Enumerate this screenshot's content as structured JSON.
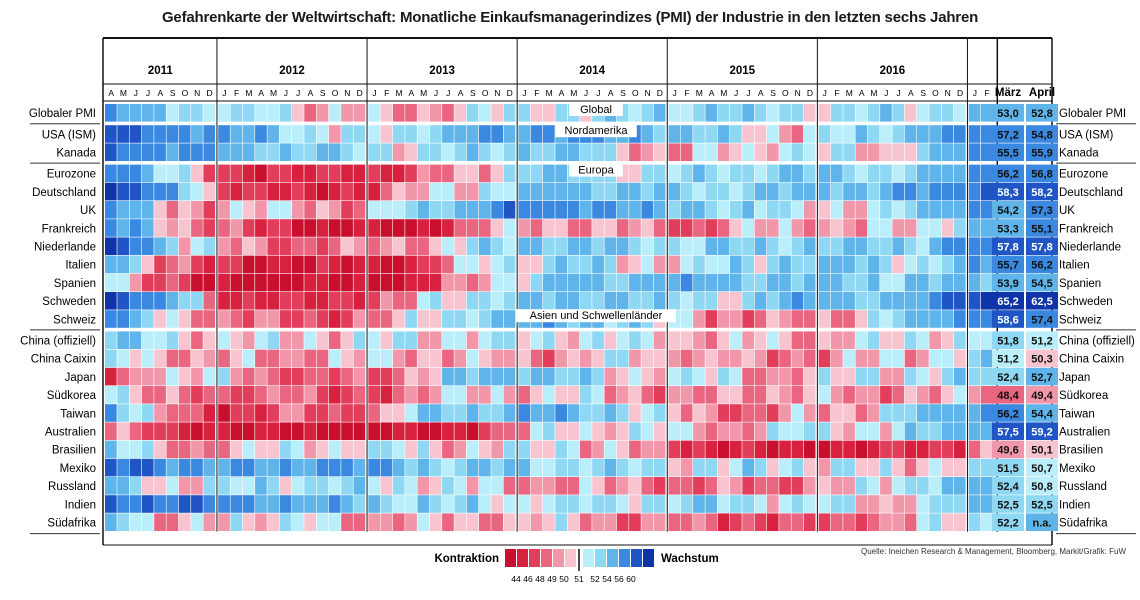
{
  "chart_data": {
    "type": "heatmap",
    "title": "Gefahrenkarte der Weltwirtschaft: Monatliche Einkaufsmanagerindizes (PMI) der Industrie in den letzten sechs Jahren",
    "years": [
      "2011",
      "2012",
      "2013",
      "2014",
      "2015",
      "2016"
    ],
    "month_initials": [
      "J",
      "F",
      "M",
      "A",
      "M",
      "J",
      "J",
      "A",
      "S",
      "O",
      "N",
      "D"
    ],
    "first_month_index": 3,
    "month_count": 71,
    "latest_months": [
      "März",
      "April"
    ],
    "regions": [
      {
        "name": "Global",
        "first_row": 0
      },
      {
        "name": "Nordamerika",
        "first_row": 1
      },
      {
        "name": "Europa",
        "first_row": 3
      },
      {
        "name": "Asien und Schwellenländer",
        "first_row": 11
      }
    ],
    "countries": [
      {
        "name": "Globaler PMI",
        "row": 0,
        "seed": 1,
        "phase": 0.3,
        "anchors": [
          [
            0,
            55
          ],
          [
            6,
            52
          ],
          [
            12,
            51
          ],
          [
            22,
            49
          ],
          [
            34,
            51
          ],
          [
            48,
            52.5
          ],
          [
            58,
            51
          ],
          [
            70,
            52.5
          ]
        ],
        "maerz": "53,0",
        "april": "52,8"
      },
      {
        "name": "USA (ISM)",
        "row": 1,
        "seed": 2,
        "phase": 1.1,
        "anchors": [
          [
            0,
            58
          ],
          [
            12,
            54
          ],
          [
            18,
            50
          ],
          [
            24,
            52
          ],
          [
            34,
            56
          ],
          [
            46,
            53
          ],
          [
            54,
            50
          ],
          [
            62,
            52
          ],
          [
            70,
            57
          ]
        ],
        "maerz": "57,2",
        "april": "54,8"
      },
      {
        "name": "Kanada",
        "row": 2,
        "seed": 3,
        "phase": 2.0,
        "anchors": [
          [
            0,
            58
          ],
          [
            12,
            53
          ],
          [
            24,
            51
          ],
          [
            36,
            53
          ],
          [
            45,
            49
          ],
          [
            53,
            51
          ],
          [
            62,
            50
          ],
          [
            70,
            55
          ]
        ],
        "maerz": "55,5",
        "april": "55,9"
      },
      {
        "name": "Eurozone",
        "row": 3,
        "seed": 4,
        "phase": 0.7,
        "anchors": [
          [
            0,
            58
          ],
          [
            4,
            52
          ],
          [
            9,
            47
          ],
          [
            16,
            46
          ],
          [
            24,
            47
          ],
          [
            30,
            50
          ],
          [
            34,
            53
          ],
          [
            44,
            51
          ],
          [
            56,
            53
          ],
          [
            64,
            52
          ],
          [
            70,
            56
          ]
        ],
        "maerz": "56,2",
        "april": "56,8"
      },
      {
        "name": "Deutschland",
        "row": 4,
        "seed": 5,
        "phase": 1.6,
        "anchors": [
          [
            0,
            62
          ],
          [
            5,
            54
          ],
          [
            9,
            48
          ],
          [
            16,
            45
          ],
          [
            22,
            48
          ],
          [
            30,
            51
          ],
          [
            36,
            54
          ],
          [
            46,
            52
          ],
          [
            58,
            53
          ],
          [
            64,
            54
          ],
          [
            70,
            58
          ]
        ],
        "maerz": "58,3",
        "april": "58,2"
      },
      {
        "name": "UK",
        "row": 5,
        "seed": 6,
        "phase": 2.4,
        "anchors": [
          [
            0,
            56
          ],
          [
            5,
            49
          ],
          [
            12,
            50
          ],
          [
            20,
            49
          ],
          [
            26,
            53
          ],
          [
            34,
            57
          ],
          [
            46,
            53
          ],
          [
            54,
            51
          ],
          [
            62,
            50
          ],
          [
            66,
            54
          ],
          [
            70,
            56
          ]
        ],
        "maerz": "54,2",
        "april": "57,3"
      },
      {
        "name": "Frankreich",
        "row": 6,
        "seed": 7,
        "phase": 0.2,
        "anchors": [
          [
            0,
            56
          ],
          [
            5,
            50
          ],
          [
            9,
            48
          ],
          [
            16,
            45
          ],
          [
            24,
            44
          ],
          [
            30,
            49
          ],
          [
            36,
            50
          ],
          [
            46,
            48
          ],
          [
            54,
            50
          ],
          [
            60,
            49
          ],
          [
            66,
            51
          ],
          [
            70,
            53
          ]
        ],
        "maerz": "53,3",
        "april": "55,1"
      },
      {
        "name": "Niederlande",
        "row": 7,
        "seed": 8,
        "phase": 1.3,
        "anchors": [
          [
            0,
            60
          ],
          [
            6,
            51
          ],
          [
            10,
            49
          ],
          [
            18,
            48
          ],
          [
            26,
            50
          ],
          [
            34,
            53
          ],
          [
            46,
            52
          ],
          [
            56,
            53
          ],
          [
            64,
            52
          ],
          [
            70,
            56
          ]
        ],
        "maerz": "57,8",
        "april": "57,8"
      },
      {
        "name": "Italien",
        "row": 8,
        "seed": 9,
        "phase": 2.2,
        "anchors": [
          [
            0,
            55
          ],
          [
            4,
            49
          ],
          [
            9,
            46
          ],
          [
            16,
            45
          ],
          [
            24,
            46
          ],
          [
            30,
            51
          ],
          [
            36,
            52
          ],
          [
            44,
            50
          ],
          [
            52,
            52
          ],
          [
            60,
            53
          ],
          [
            66,
            51
          ],
          [
            70,
            55
          ]
        ],
        "maerz": "55,7",
        "april": "56,2"
      },
      {
        "name": "Spanien",
        "row": 9,
        "seed": 10,
        "phase": 0.9,
        "anchors": [
          [
            0,
            52
          ],
          [
            3,
            48
          ],
          [
            9,
            44
          ],
          [
            16,
            44
          ],
          [
            24,
            45
          ],
          [
            30,
            50
          ],
          [
            36,
            53
          ],
          [
            46,
            54
          ],
          [
            56,
            53
          ],
          [
            64,
            52
          ],
          [
            70,
            54
          ]
        ],
        "maerz": "53,9",
        "april": "54,5"
      },
      {
        "name": "Schweden",
        "row": 10,
        "seed": 11,
        "phase": 1.8,
        "anchors": [
          [
            0,
            61
          ],
          [
            6,
            52
          ],
          [
            9,
            47
          ],
          [
            16,
            46
          ],
          [
            24,
            49
          ],
          [
            30,
            52
          ],
          [
            40,
            53
          ],
          [
            48,
            51
          ],
          [
            58,
            54
          ],
          [
            64,
            53
          ],
          [
            70,
            62
          ]
        ],
        "maerz": "65,2",
        "april": "62,5"
      },
      {
        "name": "Schweiz",
        "row": 11,
        "seed": 12,
        "phase": 2.7,
        "anchors": [
          [
            0,
            57
          ],
          [
            4,
            50
          ],
          [
            9,
            49
          ],
          [
            16,
            47
          ],
          [
            22,
            49
          ],
          [
            28,
            52
          ],
          [
            36,
            54
          ],
          [
            46,
            50
          ],
          [
            52,
            48
          ],
          [
            60,
            50
          ],
          [
            66,
            54
          ],
          [
            70,
            57
          ]
        ],
        "maerz": "58,6",
        "april": "57,4"
      },
      {
        "name": "China (offiziell)",
        "row": 12,
        "seed": 13,
        "phase": 0.5,
        "anchors": [
          [
            0,
            52
          ],
          [
            6,
            50.5
          ],
          [
            12,
            50
          ],
          [
            24,
            50.5
          ],
          [
            36,
            51
          ],
          [
            46,
            50
          ],
          [
            56,
            49.5
          ],
          [
            62,
            50.5
          ],
          [
            70,
            51.5
          ]
        ],
        "maerz": "51,8",
        "april": "51,2"
      },
      {
        "name": "China Caixin",
        "row": 13,
        "seed": 14,
        "phase": 1.4,
        "anchors": [
          [
            0,
            51
          ],
          [
            6,
            49.5
          ],
          [
            12,
            49
          ],
          [
            24,
            50
          ],
          [
            34,
            49
          ],
          [
            40,
            50.5
          ],
          [
            46,
            49.5
          ],
          [
            56,
            48.5
          ],
          [
            62,
            50
          ],
          [
            70,
            51
          ]
        ],
        "maerz": "51,2",
        "april": "50,3"
      },
      {
        "name": "Japan",
        "row": 14,
        "seed": 15,
        "phase": 2.3,
        "anchors": [
          [
            0,
            46
          ],
          [
            3,
            51
          ],
          [
            12,
            49
          ],
          [
            18,
            47
          ],
          [
            22,
            48
          ],
          [
            26,
            51
          ],
          [
            34,
            54
          ],
          [
            40,
            50
          ],
          [
            46,
            51
          ],
          [
            52,
            49
          ],
          [
            58,
            50
          ],
          [
            70,
            52
          ]
        ],
        "maerz": "52,4",
        "april": "52,7"
      },
      {
        "name": "Südkorea",
        "row": 15,
        "seed": 16,
        "phase": 0.1,
        "anchors": [
          [
            0,
            52
          ],
          [
            4,
            49
          ],
          [
            8,
            47
          ],
          [
            14,
            49
          ],
          [
            18,
            46
          ],
          [
            24,
            49
          ],
          [
            30,
            50
          ],
          [
            40,
            50
          ],
          [
            46,
            48
          ],
          [
            50,
            50
          ],
          [
            58,
            49
          ],
          [
            70,
            49
          ]
        ],
        "maerz": "48,4",
        "april": "49,4"
      },
      {
        "name": "Taiwan",
        "row": 16,
        "seed": 17,
        "phase": 1.0,
        "anchors": [
          [
            0,
            55
          ],
          [
            4,
            49
          ],
          [
            8,
            46
          ],
          [
            14,
            48
          ],
          [
            18,
            47
          ],
          [
            24,
            51
          ],
          [
            32,
            54
          ],
          [
            40,
            53
          ],
          [
            46,
            49
          ],
          [
            52,
            48
          ],
          [
            60,
            50
          ],
          [
            70,
            55
          ]
        ],
        "maerz": "56,2",
        "april": "54,4"
      },
      {
        "name": "Australien",
        "row": 17,
        "seed": 18,
        "phase": 1.9,
        "anchors": [
          [
            0,
            50
          ],
          [
            4,
            46
          ],
          [
            10,
            45
          ],
          [
            18,
            44
          ],
          [
            24,
            44
          ],
          [
            30,
            47
          ],
          [
            36,
            51
          ],
          [
            46,
            50
          ],
          [
            52,
            49
          ],
          [
            56,
            52
          ],
          [
            62,
            50
          ],
          [
            70,
            55
          ]
        ],
        "maerz": "57,5",
        "april": "59,2"
      },
      {
        "name": "Brasilien",
        "row": 18,
        "seed": 19,
        "phase": 2.8,
        "anchors": [
          [
            0,
            52
          ],
          [
            6,
            49
          ],
          [
            12,
            50
          ],
          [
            20,
            51
          ],
          [
            30,
            50
          ],
          [
            36,
            51
          ],
          [
            42,
            49
          ],
          [
            46,
            47
          ],
          [
            52,
            45
          ],
          [
            60,
            45
          ],
          [
            66,
            47
          ],
          [
            70,
            49
          ]
        ],
        "maerz": "49,6",
        "april": "50,1"
      },
      {
        "name": "Mexiko",
        "row": 19,
        "seed": 20,
        "phase": 0.6,
        "anchors": [
          [
            0,
            58
          ],
          [
            12,
            54
          ],
          [
            18,
            56
          ],
          [
            24,
            53
          ],
          [
            36,
            52
          ],
          [
            46,
            51
          ],
          [
            58,
            51
          ],
          [
            62,
            50
          ],
          [
            70,
            51
          ]
        ],
        "maerz": "51,5",
        "april": "50,7"
      },
      {
        "name": "Russland",
        "row": 20,
        "seed": 21,
        "phase": 1.5,
        "anchors": [
          [
            0,
            53
          ],
          [
            6,
            50
          ],
          [
            12,
            52
          ],
          [
            24,
            51
          ],
          [
            34,
            49
          ],
          [
            42,
            49
          ],
          [
            46,
            48
          ],
          [
            54,
            48
          ],
          [
            60,
            50
          ],
          [
            64,
            52
          ],
          [
            70,
            53
          ]
        ],
        "maerz": "52,4",
        "april": "50,8"
      },
      {
        "name": "Indien",
        "row": 21,
        "seed": 22,
        "phase": 2.5,
        "anchors": [
          [
            0,
            58
          ],
          [
            9,
            56
          ],
          [
            12,
            55
          ],
          [
            24,
            52
          ],
          [
            34,
            51
          ],
          [
            46,
            52
          ],
          [
            56,
            51
          ],
          [
            62,
            50
          ],
          [
            66,
            51
          ],
          [
            70,
            53
          ]
        ],
        "maerz": "52,5",
        "april": "52,5"
      },
      {
        "name": "Südafrika",
        "row": 22,
        "seed": 23,
        "phase": 0.4,
        "anchors": [
          [
            0,
            55
          ],
          [
            4,
            48
          ],
          [
            10,
            51
          ],
          [
            24,
            49
          ],
          [
            34,
            50
          ],
          [
            46,
            48
          ],
          [
            56,
            47
          ],
          [
            62,
            49
          ],
          [
            70,
            51
          ]
        ],
        "maerz": "52,2",
        "april": "n.a."
      }
    ],
    "legend": {
      "contraction_label": "Kontraktion",
      "growth_label": "Wachstum",
      "ticks": [
        "44",
        "46",
        "48",
        "49",
        "50",
        "51",
        "52",
        "54",
        "56",
        "60"
      ],
      "colors": [
        "#c8102e",
        "#d8213f",
        "#e23d5a",
        "#ea6580",
        "#f296aa",
        "#f8c4d0",
        "#ffffff",
        "#b9eefa",
        "#8ed8f4",
        "#5fb5ea",
        "#3a88df",
        "#1f55c5",
        "#0f33a8"
      ]
    },
    "source": "Quelle: Ineichen Research & Management, Bloomberg, Markit/Grafik: FuW"
  }
}
